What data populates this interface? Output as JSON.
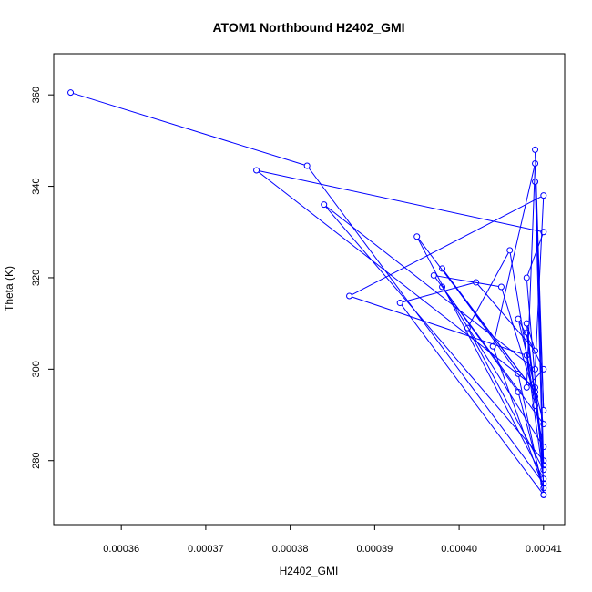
{
  "chart_data": {
    "type": "scatter",
    "title": "ATOM1 Northbound H2402_GMI",
    "xlabel": "H2402_GMI",
    "ylabel": "Theta (K)",
    "xlim": [
      0.000352,
      0.0004125
    ],
    "ylim": [
      266,
      369
    ],
    "x_ticks": [
      0.00036,
      0.00037,
      0.00038,
      0.00039,
      0.0004,
      0.00041
    ],
    "x_tick_labels": [
      "0.00036",
      "0.00037",
      "0.00038",
      "0.00039",
      "0.00040",
      "0.00041"
    ],
    "y_ticks": [
      280,
      300,
      320,
      340,
      360
    ],
    "y_tick_labels": [
      "280",
      "300",
      "320",
      "340",
      "360"
    ],
    "grid": false,
    "legend": "none",
    "series": [
      {
        "color": "#0000ff",
        "marker": "open-circle",
        "line": true,
        "x": [
          0.000354,
          0.000382,
          0.00041,
          0.000408,
          0.00041,
          0.000376,
          0.000409,
          0.00041,
          0.000384,
          0.000409,
          0.00041,
          0.000387,
          0.000408,
          0.00041,
          0.000395,
          0.000409,
          0.000398,
          0.000407,
          0.00041,
          0.000393,
          0.000402,
          0.000409,
          0.000408,
          0.00041,
          0.000401,
          0.000406,
          0.000409,
          0.00041,
          0.000398,
          0.000407,
          0.00041,
          0.000404,
          0.000409,
          0.000408,
          0.00041,
          0.000407,
          0.00041,
          0.000397,
          0.000405,
          0.000409,
          0.000408,
          0.00041,
          0.000409,
          0.00041,
          0.000409,
          0.00041
        ],
        "y": [
          360.5,
          344.5,
          275,
          320,
          330,
          343.5,
          296,
          280,
          336,
          300,
          338,
          316,
          303,
          276,
          329,
          295,
          322,
          299,
          272.5,
          314.5,
          319,
          304,
          310,
          278,
          309,
          326,
          292,
          283,
          318,
          295,
          274,
          305,
          345,
          296,
          300,
          311,
          288,
          320.5,
          318,
          294,
          308,
          279,
          348,
          291,
          341,
          272.5
        ]
      }
    ]
  }
}
